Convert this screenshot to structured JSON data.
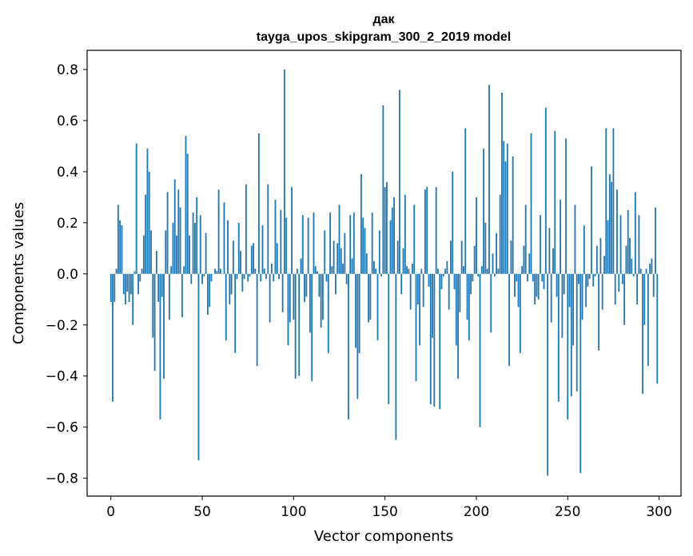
{
  "chart_data": {
    "type": "bar",
    "title_line1": "дак",
    "title_line2": "tayga_upos_skipgram_300_2_2019 model",
    "xlabel": "Vector components",
    "ylabel": "Components values",
    "xlim": [
      -13,
      312
    ],
    "ylim": [
      -0.87,
      0.875
    ],
    "xticks": [
      0,
      50,
      100,
      150,
      200,
      250,
      300
    ],
    "yticks": [
      -0.8,
      -0.6,
      -0.4,
      -0.2,
      0.0,
      0.2,
      0.4,
      0.6,
      0.8
    ],
    "ytick_labels": [
      "−0.8",
      "−0.6",
      "−0.4",
      "−0.2",
      "0.0",
      "0.2",
      "0.4",
      "0.6",
      "0.8"
    ],
    "bar_color": "#1f77b4",
    "values": [
      -0.11,
      -0.5,
      -0.11,
      0.02,
      0.27,
      0.21,
      0.19,
      -0.08,
      -0.12,
      -0.07,
      -0.11,
      -0.08,
      -0.2,
      0.01,
      0.51,
      -0.08,
      -0.03,
      0.02,
      0.15,
      0.31,
      0.49,
      0.4,
      0.17,
      -0.25,
      -0.38,
      0.09,
      -0.11,
      -0.57,
      -0.09,
      -0.41,
      0.17,
      0.32,
      -0.18,
      0.03,
      0.2,
      0.37,
      0.15,
      0.33,
      0.26,
      -0.17,
      0.03,
      0.54,
      0.47,
      0.15,
      -0.04,
      0.24,
      0.2,
      0.3,
      -0.73,
      0.23,
      -0.04,
      -0.01,
      0.16,
      -0.16,
      -0.13,
      -0.03,
      0.0,
      0.02,
      0.01,
      0.33,
      0.02,
      0.0,
      0.28,
      -0.26,
      0.21,
      -0.12,
      -0.08,
      0.13,
      -0.31,
      -0.02,
      0.2,
      0.09,
      -0.07,
      -0.02,
      0.35,
      -0.03,
      -0.01,
      0.11,
      0.12,
      0.02,
      -0.36,
      0.55,
      -0.03,
      0.19,
      0.02,
      -0.02,
      0.35,
      -0.19,
      0.04,
      -0.03,
      0.29,
      0.12,
      -0.02,
      0.25,
      -0.15,
      0.8,
      0.22,
      -0.28,
      -0.19,
      0.34,
      -0.18,
      -0.41,
      0.02,
      -0.4,
      0.06,
      0.23,
      -0.11,
      -0.09,
      0.22,
      -0.23,
      -0.42,
      0.24,
      0.03,
      0.01,
      -0.09,
      -0.21,
      -0.18,
      0.17,
      -0.03,
      -0.31,
      0.24,
      0.03,
      0.13,
      -0.08,
      0.12,
      0.27,
      0.1,
      0.04,
      0.16,
      -0.04,
      -0.57,
      0.23,
      0.06,
      0.24,
      -0.29,
      -0.49,
      -0.31,
      0.39,
      0.22,
      0.18,
      0.08,
      -0.19,
      -0.18,
      0.24,
      0.05,
      0.02,
      -0.26,
      0.17,
      -0.01,
      0.66,
      0.34,
      0.36,
      -0.51,
      0.21,
      0.26,
      0.3,
      -0.65,
      0.13,
      0.72,
      -0.08,
      0.1,
      0.31,
      0.03,
      0.02,
      -0.14,
      0.04,
      0.27,
      -0.42,
      -0.12,
      -0.28,
      0.02,
      -0.13,
      0.33,
      0.34,
      -0.05,
      -0.51,
      -0.25,
      -0.52,
      0.34,
      0.02,
      -0.53,
      -0.06,
      -0.01,
      0.02,
      0.05,
      -0.14,
      0.13,
      0.4,
      -0.06,
      -0.28,
      -0.41,
      -0.15,
      0.13,
      0.03,
      0.57,
      -0.18,
      -0.26,
      -0.08,
      -0.03,
      0.11,
      0.3,
      -0.01,
      -0.6,
      0.03,
      0.49,
      0.2,
      0.02,
      0.74,
      -0.23,
      0.08,
      -0.01,
      0.16,
      0.02,
      0.31,
      0.71,
      0.52,
      0.44,
      0.51,
      -0.36,
      0.13,
      0.46,
      -0.09,
      -0.03,
      -0.13,
      -0.31,
      0.03,
      0.11,
      0.27,
      -0.03,
      0.08,
      0.55,
      -0.03,
      -0.12,
      -0.09,
      -0.1,
      0.23,
      -0.03,
      -0.06,
      0.65,
      -0.79,
      0.18,
      -0.19,
      0.1,
      0.56,
      -0.09,
      -0.5,
      0.29,
      -0.25,
      -0.08,
      0.53,
      -0.57,
      -0.13,
      -0.48,
      -0.28,
      0.27,
      -0.46,
      -0.04,
      -0.78,
      -0.18,
      0.19,
      -0.13,
      -0.05,
      -0.02,
      0.42,
      -0.05,
      -0.01,
      0.11,
      -0.3,
      0.14,
      -0.14,
      0.07,
      0.57,
      0.21,
      0.39,
      0.36,
      0.57,
      -0.12,
      0.33,
      -0.07,
      0.23,
      -0.04,
      -0.2,
      0.11,
      0.25,
      0.14,
      0.06,
      -0.01,
      0.32,
      -0.12,
      0.23,
      0.02,
      -0.47,
      -0.2,
      0.02,
      -0.36,
      0.04,
      0.06,
      -0.09,
      0.26,
      -0.43
    ]
  }
}
